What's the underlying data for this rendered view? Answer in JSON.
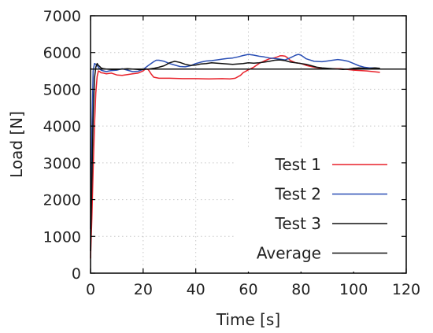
{
  "chart_data": {
    "type": "line",
    "title": "",
    "xlabel": "Time [s]",
    "ylabel": "Load [N]",
    "xlim": [
      0,
      120
    ],
    "ylim": [
      0,
      7000
    ],
    "xticks": [
      0,
      20,
      40,
      60,
      80,
      100,
      120
    ],
    "yticks": [
      0,
      1000,
      2000,
      3000,
      4000,
      5000,
      6000,
      7000
    ],
    "grid": true,
    "legend_position": "bottom-right",
    "series": [
      {
        "name": "Test 1",
        "color": "#e8212a",
        "x": [
          0,
          0.5,
          1,
          1.5,
          2,
          2.5,
          3,
          3.5,
          4,
          5,
          6,
          7,
          8,
          10,
          12,
          14,
          16,
          18,
          20,
          21,
          22,
          23,
          24,
          26,
          30,
          35,
          40,
          45,
          50,
          53,
          55,
          57,
          58,
          60,
          62,
          64,
          66,
          68,
          70,
          71,
          72,
          73,
          74,
          75,
          76,
          78,
          80,
          82,
          85,
          88,
          90,
          95,
          100,
          105,
          110
        ],
        "y": [
          400,
          1500,
          2800,
          4000,
          4900,
          5350,
          5500,
          5480,
          5450,
          5440,
          5420,
          5430,
          5440,
          5390,
          5380,
          5400,
          5420,
          5440,
          5500,
          5560,
          5530,
          5420,
          5330,
          5300,
          5300,
          5290,
          5290,
          5280,
          5290,
          5280,
          5300,
          5380,
          5450,
          5530,
          5600,
          5700,
          5770,
          5830,
          5860,
          5880,
          5910,
          5910,
          5900,
          5850,
          5780,
          5720,
          5700,
          5650,
          5600,
          5570,
          5560,
          5560,
          5520,
          5500,
          5460
        ]
      },
      {
        "name": "Test 2",
        "color": "#2a4fb5",
        "x": [
          0,
          0.5,
          1,
          1.5,
          2,
          2.5,
          3,
          3.5,
          4,
          5,
          6,
          7,
          8,
          10,
          12,
          14,
          16,
          18,
          20,
          22,
          24,
          25,
          26,
          28,
          30,
          32,
          34,
          36,
          38,
          40,
          42,
          44,
          46,
          48,
          50,
          52,
          54,
          56,
          58,
          60,
          62,
          64,
          66,
          68,
          70,
          72,
          74,
          76,
          78,
          79,
          80,
          82,
          85,
          88,
          90,
          92,
          94,
          96,
          98,
          100,
          102,
          104,
          106,
          108,
          110
        ],
        "y": [
          1200,
          3800,
          5500,
          5700,
          5680,
          5650,
          5600,
          5560,
          5520,
          5500,
          5480,
          5500,
          5510,
          5520,
          5560,
          5520,
          5480,
          5490,
          5540,
          5650,
          5750,
          5790,
          5790,
          5760,
          5700,
          5660,
          5620,
          5610,
          5640,
          5700,
          5740,
          5770,
          5780,
          5800,
          5820,
          5840,
          5850,
          5880,
          5920,
          5950,
          5930,
          5900,
          5880,
          5850,
          5840,
          5820,
          5800,
          5860,
          5930,
          5950,
          5930,
          5830,
          5760,
          5750,
          5770,
          5790,
          5810,
          5790,
          5760,
          5700,
          5640,
          5600,
          5580,
          5580,
          5560
        ]
      },
      {
        "name": "Test 3",
        "color": "#111111",
        "x": [
          0,
          0.5,
          1,
          1.5,
          2,
          2.5,
          3,
          3.5,
          4,
          5,
          6,
          8,
          10,
          12,
          14,
          16,
          18,
          20,
          22,
          24,
          26,
          28,
          30,
          32,
          34,
          36,
          38,
          40,
          42,
          44,
          46,
          48,
          50,
          52,
          54,
          56,
          58,
          60,
          62,
          64,
          66,
          68,
          70,
          72,
          74,
          76,
          78,
          80,
          82,
          84,
          86,
          88,
          90,
          92,
          94,
          96,
          98,
          100,
          102,
          104,
          106,
          108,
          110
        ],
        "y": [
          600,
          2500,
          4200,
          5300,
          5600,
          5700,
          5650,
          5620,
          5580,
          5560,
          5550,
          5540,
          5540,
          5550,
          5560,
          5550,
          5540,
          5540,
          5550,
          5570,
          5600,
          5640,
          5720,
          5760,
          5730,
          5680,
          5650,
          5660,
          5690,
          5700,
          5720,
          5710,
          5700,
          5690,
          5680,
          5690,
          5700,
          5720,
          5710,
          5720,
          5740,
          5760,
          5790,
          5800,
          5780,
          5740,
          5720,
          5700,
          5680,
          5640,
          5600,
          5580,
          5570,
          5560,
          5550,
          5540,
          5550,
          5570,
          5580,
          5570,
          5560,
          5580,
          5570
        ]
      },
      {
        "name": "Average",
        "color": "#111111",
        "x": [
          0,
          120
        ],
        "y": [
          5550,
          5550
        ]
      }
    ]
  }
}
